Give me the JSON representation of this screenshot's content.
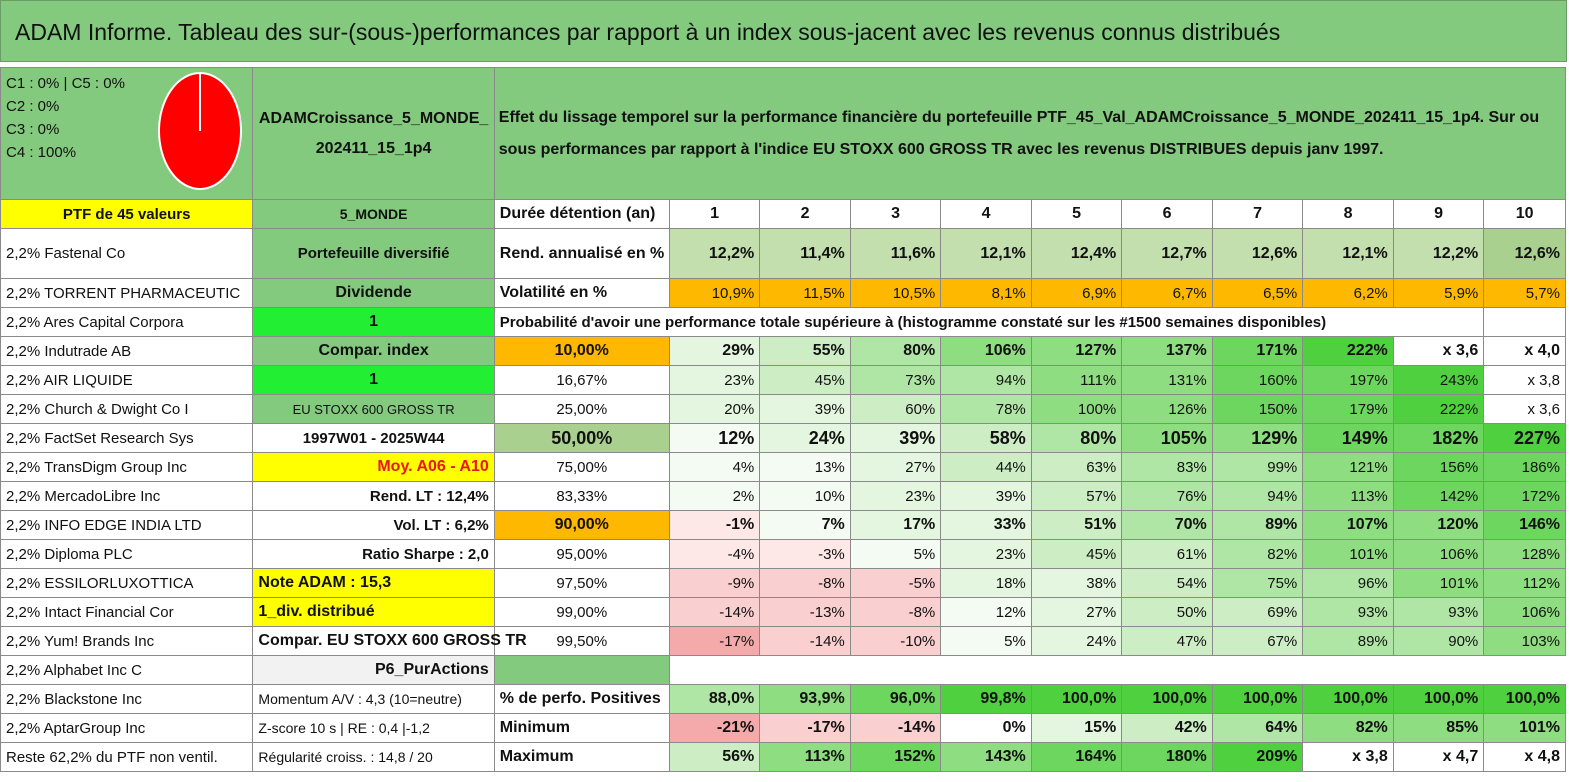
{
  "title": "ADAM Informe. Tableau des sur-(sous-)performances par rapport à un index sous-jacent avec les revenus connus distribués",
  "pie_labels": [
    "C1 : 0% | C5 : 0%",
    "C2 : 0%",
    "C3 : 0%",
    "C4 : 100%"
  ],
  "portfolio_name": "ADAMCroissance_5_MONDE_202411_15_1p4",
  "description": "Effet du lissage temporel sur la performance financière du portefeuille PTF_45_Val_ADAMCroissance_5_MONDE_202411_15_1p4. Sur ou sous performances par rapport à l'indice EU STOXX 600 GROSS TR avec les revenus DISTRIBUES depuis janv 1997.",
  "ptf_header": "PTF de 45 valeurs",
  "holdings": [
    "2,2% Fastenal Co",
    "2,2% TORRENT PHARMACEUTIC",
    "2,2% Ares Capital Corpora",
    "2,2% Indutrade AB",
    "2,2% AIR LIQUIDE",
    "2,2% Church & Dwight Co I",
    "2,2% FactSet Research Sys",
    "2,2% TransDigm Group Inc",
    "2,2% MercadoLibre Inc",
    "2,2% INFO EDGE INDIA LTD",
    "2,2% Diploma PLC",
    "2,2% ESSILORLUXOTTICA",
    "2,2% Intact Financial Cor",
    "2,2% Yum! Brands Inc",
    "2,2% Alphabet Inc C",
    "2,2% Blackstone Inc",
    "2,2% AptarGroup Inc",
    "Reste 62,2% du PTF non ventil."
  ],
  "info": {
    "zone": "5_MONDE",
    "type": "Portefeuille diversifié",
    "dividend_label": "Dividende",
    "dividend_value": "1",
    "compar_label": "Compar. index",
    "compar_value": "1",
    "index_name": "EU STOXX 600 GROSS TR",
    "period": "1997W01 - 2025W44",
    "moy": "Moy. A06 - A10",
    "rend_lt": "Rend. LT : 12,4%",
    "vol_lt": "Vol. LT : 6,2%",
    "sharpe": "Ratio Sharpe : 2,0",
    "note": "Note ADAM : 15,3",
    "div_distrib": "1_div. distribué",
    "compar_full": "Compar. EU STOXX 600 GROSS TR",
    "p6": "P6_PurActions",
    "momentum": "Momentum A/V : 4,3 (10=neutre)",
    "zscore": "Z-score 10 s | RE : 0,4 |-1,2",
    "regularite": "Régularité croiss. : 14,8 / 20"
  },
  "duration_label": "Durée détention (an)",
  "years": [
    "1",
    "2",
    "3",
    "4",
    "5",
    "6",
    "7",
    "8",
    "9",
    "10"
  ],
  "rend_label": "Rend. annualisé en %",
  "rend": [
    "12,2%",
    "11,4%",
    "11,6%",
    "12,1%",
    "12,4%",
    "12,7%",
    "12,6%",
    "12,1%",
    "12,2%",
    "12,6%"
  ],
  "vol_label": "Volatilité en %",
  "vol": [
    "10,9%",
    "11,5%",
    "10,5%",
    "8,1%",
    "6,9%",
    "6,7%",
    "6,5%",
    "6,2%",
    "5,9%",
    "5,7%"
  ],
  "prob_header": "Probabilité d'avoir une performance totale supérieure à (histogramme constaté sur les #1500 semaines disponibles)",
  "prob_rows": [
    {
      "p": "10,00%",
      "v": [
        "29%",
        "55%",
        "80%",
        "106%",
        "127%",
        "137%",
        "171%",
        "222%",
        "x 3,6",
        "x 4,0"
      ]
    },
    {
      "p": "16,67%",
      "v": [
        "23%",
        "45%",
        "73%",
        "94%",
        "111%",
        "131%",
        "160%",
        "197%",
        "243%",
        "x 3,8"
      ]
    },
    {
      "p": "25,00%",
      "v": [
        "20%",
        "39%",
        "60%",
        "78%",
        "100%",
        "126%",
        "150%",
        "179%",
        "222%",
        "x 3,6"
      ]
    },
    {
      "p": "50,00%",
      "v": [
        "12%",
        "24%",
        "39%",
        "58%",
        "80%",
        "105%",
        "129%",
        "149%",
        "182%",
        "227%"
      ]
    },
    {
      "p": "75,00%",
      "v": [
        "4%",
        "13%",
        "27%",
        "44%",
        "63%",
        "83%",
        "99%",
        "121%",
        "156%",
        "186%"
      ]
    },
    {
      "p": "83,33%",
      "v": [
        "2%",
        "10%",
        "23%",
        "39%",
        "57%",
        "76%",
        "94%",
        "113%",
        "142%",
        "172%"
      ]
    },
    {
      "p": "90,00%",
      "v": [
        "-1%",
        "7%",
        "17%",
        "33%",
        "51%",
        "70%",
        "89%",
        "107%",
        "120%",
        "146%"
      ]
    },
    {
      "p": "95,00%",
      "v": [
        "-4%",
        "-3%",
        "5%",
        "23%",
        "45%",
        "61%",
        "82%",
        "101%",
        "106%",
        "128%"
      ]
    },
    {
      "p": "97,50%",
      "v": [
        "-9%",
        "-8%",
        "-5%",
        "18%",
        "38%",
        "54%",
        "75%",
        "96%",
        "101%",
        "112%"
      ]
    },
    {
      "p": "99,00%",
      "v": [
        "-14%",
        "-13%",
        "-8%",
        "12%",
        "27%",
        "50%",
        "69%",
        "93%",
        "93%",
        "106%"
      ]
    },
    {
      "p": "99,50%",
      "v": [
        "-17%",
        "-14%",
        "-10%",
        "5%",
        "24%",
        "47%",
        "67%",
        "89%",
        "90%",
        "103%"
      ]
    }
  ],
  "pos_label": "% de perfo. Positives",
  "pos": [
    "88,0%",
    "93,9%",
    "96,0%",
    "99,8%",
    "100,0%",
    "100,0%",
    "100,0%",
    "100,0%",
    "100,0%",
    "100,0%"
  ],
  "min_label": "Minimum",
  "min": [
    "-21%",
    "-17%",
    "-14%",
    "0%",
    "15%",
    "42%",
    "64%",
    "82%",
    "85%",
    "101%"
  ],
  "max_label": "Maximum",
  "max": [
    "56%",
    "113%",
    "152%",
    "143%",
    "164%",
    "180%",
    "209%",
    "x 3,8",
    "x 4,7",
    "x 4,8"
  ],
  "colors": {
    "title_bg": "#83c97e",
    "pie_red": "#ff0000",
    "yellow": "#ffff00",
    "orange": "#ffb800"
  }
}
